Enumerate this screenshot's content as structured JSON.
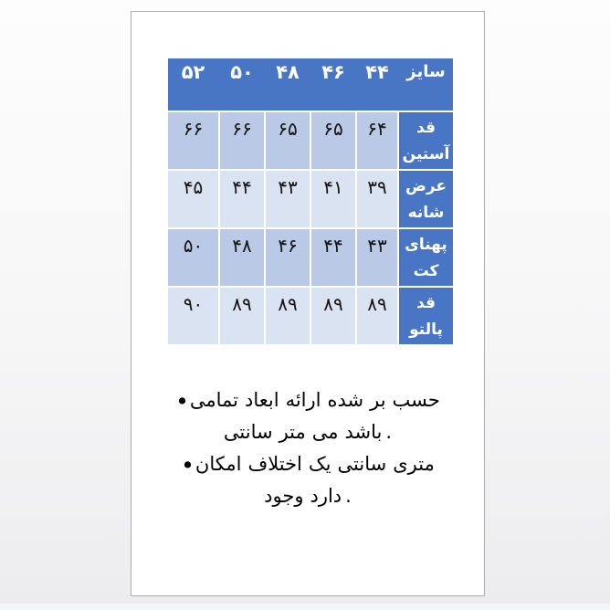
{
  "table": {
    "header": {
      "label": "سایز",
      "sizes": [
        "۵۲",
        "۵۰",
        "۴۸",
        "۴۶",
        "۴۴"
      ]
    },
    "rows": [
      {
        "label": "قد آستین",
        "values": [
          "۶۶",
          "۶۶",
          "۶۵",
          "۶۵",
          "۶۴"
        ]
      },
      {
        "label": "عرض شانه",
        "values": [
          "۴۵",
          "۴۴",
          "۴۳",
          "۴۱",
          "۳۹"
        ]
      },
      {
        "label": "پهنای کت",
        "values": [
          "۵۰",
          "۴۸",
          "۴۶",
          "۴۴",
          "۴۳"
        ]
      },
      {
        "label": "قد پالتو",
        "values": [
          "۹۰",
          "۸۹",
          "۸۹",
          "۸۹",
          "۸۹"
        ]
      }
    ]
  },
  "notes": {
    "lines": [
      [
        "•",
        "تمامی",
        "ابعاد",
        "ارائه",
        "شده",
        "بر",
        "حسب"
      ],
      [
        "سانتی",
        "متر",
        "می",
        "باشد",
        "."
      ],
      [
        "•",
        "امکان",
        "اختلاف",
        "یک",
        "سانتی",
        "متری"
      ],
      [
        "وجود",
        "دارد",
        "."
      ]
    ]
  },
  "colors": {
    "header_blue": "#4876c5",
    "band_dark": "#b9c9e6",
    "band_light": "#dae3f2",
    "grid_line": "#ffffff",
    "page_bg": "#ffffff",
    "canvas_top": "#fdfdfd",
    "canvas_bottom": "#ececee",
    "bottom_strip": "#f1f7f8",
    "page_border": "#ababab",
    "text": "#000000"
  }
}
